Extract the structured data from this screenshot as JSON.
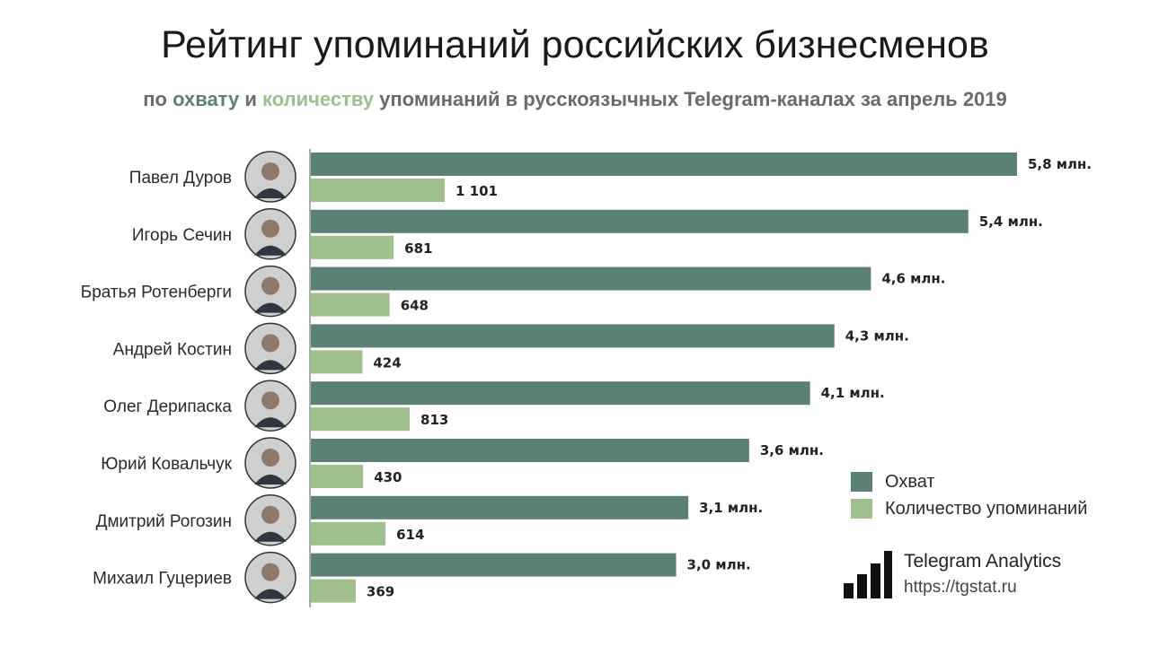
{
  "title": "Рейтинг упоминаний российских бизнесменов",
  "subtitle": {
    "part1": "по ",
    "reach_word": "охвату",
    "part2": " и ",
    "count_word": "количеству",
    "part3": " упоминаний в русскоязычных Telegram-каналах за апрель 2019"
  },
  "colors": {
    "reach": "#5b8176",
    "count": "#9fbf8c"
  },
  "legend": {
    "reach_label": "Охват",
    "count_label": "Количество упоминаний"
  },
  "brand": {
    "name": "Telegram Analytics",
    "url": "https://tgstat.ru"
  },
  "chart_data": {
    "type": "bar",
    "orientation": "horizontal",
    "categories": [
      "Павел Дуров",
      "Игорь Сечин",
      "Братья Ротенберги",
      "Андрей Костин",
      "Олег Дерипаска",
      "Юрий Ковальчук",
      "Дмитрий Рогозин",
      "Михаил Гуцериев"
    ],
    "series": [
      {
        "name": "Охват",
        "values": [
          5.8,
          5.4,
          4.6,
          4.3,
          4.1,
          3.6,
          3.1,
          3.0
        ],
        "labels": [
          "5,8 млн.",
          "5,4 млн.",
          "4,6 млн.",
          "4,3 млн.",
          "4,1 млн.",
          "3,6 млн.",
          "3,1 млн.",
          "3,0 млн."
        ]
      },
      {
        "name": "Количество упоминаний",
        "values": [
          1101,
          681,
          648,
          424,
          813,
          430,
          614,
          369
        ],
        "labels": [
          "1 101",
          "681",
          "648",
          "424",
          "813",
          "430",
          "614",
          "369"
        ]
      }
    ],
    "legend_position": "bottom-right",
    "grid": false
  }
}
